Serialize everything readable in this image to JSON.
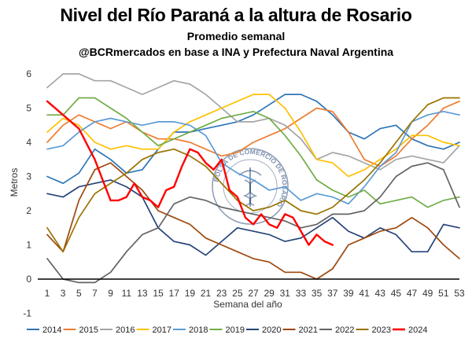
{
  "header": {
    "title": "Nivel del Río Paraná a la altura de Rosario",
    "subtitle": "Promedio semanal",
    "source": "@BCRmercados en base a INA y Prefectura Naval Argentina"
  },
  "watermark": {
    "text": "BOLSA DE COMERCIO DE ROSARIO",
    "color": "#2c4a7a"
  },
  "chart_data": {
    "type": "line",
    "title": "Nivel del Río Paraná a la altura de Rosario",
    "subtitle": "Promedio semanal",
    "xlabel": "Semana del año",
    "ylabel": "Metros",
    "xlim": [
      1,
      53
    ],
    "ylim": [
      -1,
      6
    ],
    "x_ticks": [
      1,
      3,
      5,
      7,
      9,
      11,
      13,
      15,
      17,
      19,
      21,
      23,
      25,
      27,
      29,
      31,
      33,
      35,
      37,
      39,
      41,
      43,
      45,
      47,
      49,
      51,
      53
    ],
    "y_ticks": [
      -1,
      0,
      1,
      2,
      3,
      4,
      5,
      6
    ],
    "grid": false,
    "legend_position": "bottom",
    "series": [
      {
        "name": "2014",
        "color": "#2e75b6",
        "points": [
          [
            1,
            3.0
          ],
          [
            3,
            2.8
          ],
          [
            5,
            3.1
          ],
          [
            7,
            3.8
          ],
          [
            9,
            3.5
          ],
          [
            11,
            3.1
          ],
          [
            13,
            3.2
          ],
          [
            15,
            3.8
          ],
          [
            17,
            4.3
          ],
          [
            19,
            4.3
          ],
          [
            21,
            4.4
          ],
          [
            23,
            4.5
          ],
          [
            25,
            4.6
          ],
          [
            27,
            4.8
          ],
          [
            29,
            5.1
          ],
          [
            31,
            5.4
          ],
          [
            33,
            5.4
          ],
          [
            35,
            5.2
          ],
          [
            37,
            4.8
          ],
          [
            39,
            4.3
          ],
          [
            41,
            4.1
          ],
          [
            43,
            4.4
          ],
          [
            45,
            4.5
          ],
          [
            47,
            4.1
          ],
          [
            49,
            3.9
          ],
          [
            51,
            3.8
          ],
          [
            53,
            4.0
          ]
        ]
      },
      {
        "name": "2015",
        "color": "#ed7d31",
        "points": [
          [
            1,
            4.0
          ],
          [
            3,
            4.5
          ],
          [
            5,
            4.8
          ],
          [
            7,
            4.6
          ],
          [
            9,
            4.4
          ],
          [
            11,
            4.6
          ],
          [
            13,
            4.3
          ],
          [
            15,
            4.1
          ],
          [
            17,
            4.1
          ],
          [
            19,
            4.0
          ],
          [
            21,
            3.8
          ],
          [
            23,
            3.6
          ],
          [
            25,
            3.7
          ],
          [
            27,
            4.0
          ],
          [
            29,
            4.2
          ],
          [
            31,
            4.4
          ],
          [
            33,
            4.7
          ],
          [
            35,
            5.0
          ],
          [
            37,
            4.9
          ],
          [
            39,
            4.3
          ],
          [
            41,
            3.5
          ],
          [
            43,
            3.3
          ],
          [
            45,
            3.6
          ],
          [
            47,
            4.1
          ],
          [
            49,
            4.5
          ],
          [
            51,
            5.0
          ],
          [
            53,
            5.2
          ]
        ]
      },
      {
        "name": "2016",
        "color": "#a5a5a5",
        "points": [
          [
            1,
            5.6
          ],
          [
            3,
            6.0
          ],
          [
            5,
            6.0
          ],
          [
            7,
            5.8
          ],
          [
            9,
            5.8
          ],
          [
            11,
            5.6
          ],
          [
            13,
            5.4
          ],
          [
            15,
            5.6
          ],
          [
            17,
            5.8
          ],
          [
            19,
            5.7
          ],
          [
            21,
            5.4
          ],
          [
            23,
            5.0
          ],
          [
            25,
            4.6
          ],
          [
            27,
            4.6
          ],
          [
            29,
            4.7
          ],
          [
            31,
            4.5
          ],
          [
            33,
            4.1
          ],
          [
            35,
            3.5
          ],
          [
            37,
            3.7
          ],
          [
            39,
            3.6
          ],
          [
            41,
            3.4
          ],
          [
            43,
            3.2
          ],
          [
            45,
            3.5
          ],
          [
            47,
            3.6
          ],
          [
            49,
            3.5
          ],
          [
            51,
            3.4
          ],
          [
            53,
            3.9
          ]
        ]
      },
      {
        "name": "2017",
        "color": "#ffc000",
        "points": [
          [
            1,
            4.3
          ],
          [
            3,
            4.7
          ],
          [
            5,
            4.5
          ],
          [
            7,
            4.0
          ],
          [
            9,
            3.8
          ],
          [
            11,
            3.9
          ],
          [
            13,
            3.8
          ],
          [
            15,
            3.8
          ],
          [
            17,
            4.3
          ],
          [
            19,
            4.6
          ],
          [
            21,
            4.8
          ],
          [
            23,
            5.0
          ],
          [
            25,
            5.2
          ],
          [
            27,
            5.4
          ],
          [
            29,
            5.4
          ],
          [
            31,
            5.0
          ],
          [
            33,
            4.3
          ],
          [
            35,
            3.5
          ],
          [
            37,
            3.4
          ],
          [
            39,
            3.0
          ],
          [
            41,
            3.2
          ],
          [
            43,
            3.5
          ],
          [
            45,
            3.8
          ],
          [
            47,
            4.2
          ],
          [
            49,
            4.2
          ],
          [
            51,
            4.0
          ],
          [
            53,
            3.9
          ]
        ]
      },
      {
        "name": "2018",
        "color": "#5b9bd5",
        "points": [
          [
            1,
            3.8
          ],
          [
            3,
            3.9
          ],
          [
            5,
            4.3
          ],
          [
            7,
            4.6
          ],
          [
            9,
            4.7
          ],
          [
            11,
            4.6
          ],
          [
            13,
            4.5
          ],
          [
            15,
            4.6
          ],
          [
            17,
            4.6
          ],
          [
            19,
            4.5
          ],
          [
            21,
            4.2
          ],
          [
            23,
            3.4
          ],
          [
            25,
            3.1
          ],
          [
            27,
            2.9
          ],
          [
            29,
            2.6
          ],
          [
            31,
            2.7
          ],
          [
            33,
            2.3
          ],
          [
            35,
            2.5
          ],
          [
            37,
            2.4
          ],
          [
            39,
            2.2
          ],
          [
            41,
            2.7
          ],
          [
            43,
            3.3
          ],
          [
            45,
            3.7
          ],
          [
            47,
            4.6
          ],
          [
            49,
            4.8
          ],
          [
            51,
            4.9
          ],
          [
            53,
            4.8
          ]
        ]
      },
      {
        "name": "2019",
        "color": "#70ad47",
        "points": [
          [
            1,
            4.8
          ],
          [
            3,
            4.8
          ],
          [
            5,
            5.3
          ],
          [
            7,
            5.3
          ],
          [
            9,
            5.0
          ],
          [
            11,
            4.7
          ],
          [
            13,
            4.3
          ],
          [
            15,
            3.9
          ],
          [
            17,
            4.1
          ],
          [
            19,
            4.3
          ],
          [
            21,
            4.5
          ],
          [
            23,
            4.7
          ],
          [
            25,
            4.8
          ],
          [
            27,
            4.9
          ],
          [
            29,
            4.7
          ],
          [
            31,
            4.2
          ],
          [
            33,
            3.6
          ],
          [
            35,
            2.9
          ],
          [
            37,
            2.6
          ],
          [
            39,
            2.4
          ],
          [
            41,
            2.6
          ],
          [
            43,
            2.2
          ],
          [
            45,
            2.3
          ],
          [
            47,
            2.4
          ],
          [
            49,
            2.1
          ],
          [
            51,
            2.3
          ],
          [
            53,
            2.4
          ]
        ]
      },
      {
        "name": "2020",
        "color": "#264478",
        "points": [
          [
            1,
            2.5
          ],
          [
            3,
            2.4
          ],
          [
            5,
            2.7
          ],
          [
            7,
            2.8
          ],
          [
            9,
            2.9
          ],
          [
            11,
            2.7
          ],
          [
            13,
            2.4
          ],
          [
            15,
            1.5
          ],
          [
            17,
            1.1
          ],
          [
            19,
            1.0
          ],
          [
            21,
            0.7
          ],
          [
            23,
            1.1
          ],
          [
            25,
            1.5
          ],
          [
            27,
            1.4
          ],
          [
            29,
            1.3
          ],
          [
            31,
            1.1
          ],
          [
            33,
            1.2
          ],
          [
            35,
            1.5
          ],
          [
            37,
            1.8
          ],
          [
            39,
            1.4
          ],
          [
            41,
            1.2
          ],
          [
            43,
            1.5
          ],
          [
            45,
            1.3
          ],
          [
            47,
            0.8
          ],
          [
            49,
            0.8
          ],
          [
            51,
            1.6
          ],
          [
            53,
            1.5
          ]
        ]
      },
      {
        "name": "2021",
        "color": "#9e480e",
        "points": [
          [
            1,
            1.3
          ],
          [
            3,
            0.8
          ],
          [
            5,
            2.3
          ],
          [
            7,
            3.2
          ],
          [
            9,
            3.4
          ],
          [
            11,
            3.0
          ],
          [
            13,
            2.6
          ],
          [
            15,
            2.0
          ],
          [
            17,
            1.8
          ],
          [
            19,
            1.6
          ],
          [
            21,
            1.2
          ],
          [
            23,
            1.0
          ],
          [
            25,
            0.8
          ],
          [
            27,
            0.6
          ],
          [
            29,
            0.5
          ],
          [
            31,
            0.2
          ],
          [
            33,
            0.2
          ],
          [
            35,
            0.0
          ],
          [
            37,
            0.3
          ],
          [
            39,
            1.0
          ],
          [
            41,
            1.2
          ],
          [
            43,
            1.4
          ],
          [
            45,
            1.5
          ],
          [
            47,
            1.8
          ],
          [
            49,
            1.5
          ],
          [
            51,
            1.0
          ],
          [
            53,
            0.6
          ]
        ]
      },
      {
        "name": "2022",
        "color": "#636363",
        "points": [
          [
            1,
            0.6
          ],
          [
            3,
            0.0
          ],
          [
            5,
            -0.1
          ],
          [
            7,
            -0.1
          ],
          [
            9,
            0.2
          ],
          [
            11,
            0.8
          ],
          [
            13,
            1.3
          ],
          [
            15,
            1.5
          ],
          [
            17,
            2.2
          ],
          [
            19,
            2.4
          ],
          [
            21,
            2.3
          ],
          [
            23,
            2.1
          ],
          [
            25,
            2.0
          ],
          [
            27,
            1.9
          ],
          [
            29,
            1.8
          ],
          [
            31,
            1.7
          ],
          [
            33,
            1.5
          ],
          [
            35,
            1.6
          ],
          [
            37,
            1.9
          ],
          [
            39,
            1.9
          ],
          [
            41,
            2.0
          ],
          [
            43,
            2.4
          ],
          [
            45,
            3.0
          ],
          [
            47,
            3.3
          ],
          [
            49,
            3.4
          ],
          [
            51,
            3.2
          ],
          [
            53,
            2.1
          ]
        ]
      },
      {
        "name": "2023",
        "color": "#997300",
        "points": [
          [
            1,
            1.5
          ],
          [
            3,
            0.8
          ],
          [
            5,
            1.8
          ],
          [
            7,
            2.5
          ],
          [
            9,
            2.8
          ],
          [
            11,
            3.1
          ],
          [
            13,
            3.5
          ],
          [
            15,
            3.7
          ],
          [
            17,
            3.8
          ],
          [
            19,
            3.6
          ],
          [
            21,
            3.3
          ],
          [
            23,
            2.8
          ],
          [
            25,
            2.3
          ],
          [
            27,
            2.0
          ],
          [
            29,
            2.1
          ],
          [
            31,
            2.3
          ],
          [
            33,
            2.0
          ],
          [
            35,
            1.9
          ],
          [
            37,
            2.1
          ],
          [
            39,
            2.5
          ],
          [
            41,
            2.9
          ],
          [
            43,
            3.4
          ],
          [
            45,
            4.0
          ],
          [
            47,
            4.6
          ],
          [
            49,
            5.1
          ],
          [
            51,
            5.3
          ],
          [
            53,
            5.3
          ]
        ]
      },
      {
        "name": "2024",
        "color": "#ff0000",
        "width": 2.4,
        "points": [
          [
            1,
            5.2
          ],
          [
            3,
            4.8
          ],
          [
            5,
            4.4
          ],
          [
            7,
            3.5
          ],
          [
            8,
            2.9
          ],
          [
            9,
            2.3
          ],
          [
            10,
            2.3
          ],
          [
            11,
            2.4
          ],
          [
            12,
            2.8
          ],
          [
            13,
            2.4
          ],
          [
            14,
            2.3
          ],
          [
            15,
            2.1
          ],
          [
            16,
            2.6
          ],
          [
            17,
            2.7
          ],
          [
            18,
            3.3
          ],
          [
            19,
            3.8
          ],
          [
            20,
            3.7
          ],
          [
            21,
            3.4
          ],
          [
            22,
            3.2
          ],
          [
            23,
            3.5
          ],
          [
            24,
            2.6
          ],
          [
            25,
            2.4
          ],
          [
            26,
            1.8
          ],
          [
            27,
            1.6
          ],
          [
            28,
            1.9
          ],
          [
            29,
            1.6
          ],
          [
            30,
            1.5
          ],
          [
            31,
            1.9
          ],
          [
            32,
            1.8
          ],
          [
            33,
            1.4
          ],
          [
            34,
            1.0
          ],
          [
            35,
            1.3
          ],
          [
            36,
            1.1
          ],
          [
            37,
            1.0
          ]
        ]
      }
    ]
  }
}
